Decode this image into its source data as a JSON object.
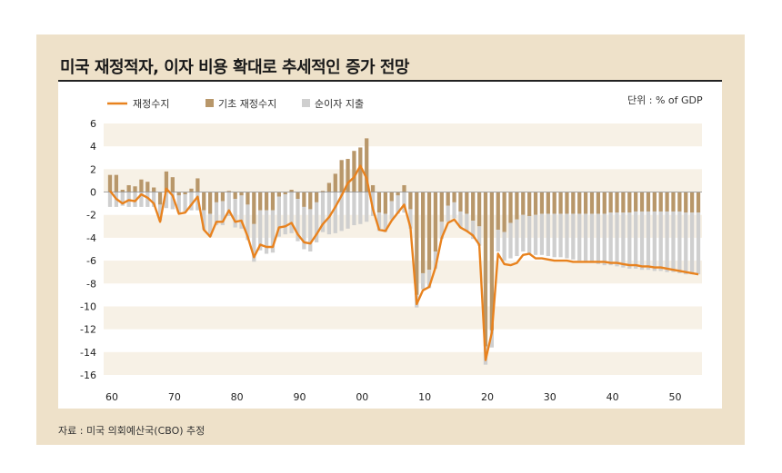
{
  "title": "미국 재정적자, 이자 비용 확대로 추세적인 증가 전망",
  "unit": "단위 : % of GDP",
  "source": "자료 : 미국 의회예산국(CBO) 추정",
  "colors": {
    "panel_bg": "#eee1c9",
    "band": "#f7f1e6",
    "line": "#e8821e",
    "primary": "#b8976a",
    "interest": "#cfcfcf"
  },
  "chart_data": {
    "type": "bar+line",
    "xlabel": "",
    "ylabel": "% of GDP",
    "ylim": [
      -16,
      6
    ],
    "yticks": [
      6,
      4,
      2,
      0,
      -2,
      -4,
      -6,
      -8,
      -10,
      -12,
      -14,
      -16
    ],
    "ytick_labels": [
      "6",
      "4",
      "2",
      "0",
      "-2",
      "-4",
      "-6",
      "-8",
      "-10",
      "-12",
      "-14",
      "-16"
    ],
    "xlim": [
      1960,
      2054
    ],
    "xticks": [
      1960,
      1970,
      1980,
      1990,
      2000,
      2010,
      2020,
      2030,
      2040,
      2050
    ],
    "xtick_labels": [
      "60",
      "70",
      "80",
      "90",
      "00",
      "10",
      "20",
      "30",
      "40",
      "50"
    ],
    "legend": [
      "재정수지",
      "기초 재정수지",
      "순이자 지출"
    ],
    "years": [
      1960,
      1961,
      1962,
      1963,
      1964,
      1965,
      1966,
      1967,
      1968,
      1969,
      1970,
      1971,
      1972,
      1973,
      1974,
      1975,
      1976,
      1977,
      1978,
      1979,
      1980,
      1981,
      1982,
      1983,
      1984,
      1985,
      1986,
      1987,
      1988,
      1989,
      1990,
      1991,
      1992,
      1993,
      1994,
      1995,
      1996,
      1997,
      1998,
      1999,
      2000,
      2001,
      2002,
      2003,
      2004,
      2005,
      2006,
      2007,
      2008,
      2009,
      2010,
      2011,
      2012,
      2013,
      2014,
      2015,
      2016,
      2017,
      2018,
      2019,
      2020,
      2021,
      2022,
      2023,
      2024,
      2025,
      2026,
      2027,
      2028,
      2029,
      2030,
      2031,
      2032,
      2033,
      2034,
      2035,
      2036,
      2037,
      2038,
      2039,
      2040,
      2041,
      2042,
      2043,
      2044,
      2045,
      2046,
      2047,
      2048,
      2049,
      2050,
      2051,
      2052,
      2053,
      2054
    ],
    "series": [
      {
        "name": "재정수지",
        "values": [
          0.1,
          -0.6,
          -1.0,
          -0.7,
          -0.8,
          -0.2,
          -0.5,
          -1.0,
          -2.6,
          0.3,
          -0.3,
          -1.9,
          -1.8,
          -1.1,
          -0.4,
          -3.3,
          -3.9,
          -2.6,
          -2.6,
          -1.6,
          -2.6,
          -2.5,
          -3.9,
          -5.7,
          -4.6,
          -4.8,
          -4.8,
          -3.1,
          -3.0,
          -2.7,
          -3.7,
          -4.4,
          -4.5,
          -3.7,
          -2.8,
          -2.2,
          -1.3,
          -0.3,
          0.8,
          1.3,
          2.3,
          1.2,
          -1.5,
          -3.3,
          -3.4,
          -2.5,
          -1.8,
          -1.1,
          -3.1,
          -9.8,
          -8.6,
          -8.3,
          -6.6,
          -4.0,
          -2.7,
          -2.4,
          -3.1,
          -3.4,
          -3.8,
          -4.6,
          -14.7,
          -12.3,
          -5.4,
          -6.3,
          -6.4,
          -6.2,
          -5.5,
          -5.4,
          -5.8,
          -5.8,
          -5.9,
          -6.0,
          -6.0,
          -6.0,
          -6.1,
          -6.1,
          -6.1,
          -6.1,
          -6.1,
          -6.1,
          -6.2,
          -6.2,
          -6.3,
          -6.4,
          -6.4,
          -6.5,
          -6.5,
          -6.6,
          -6.6,
          -6.7,
          -6.8,
          -6.9,
          -7.0,
          -7.1,
          -7.2
        ]
      },
      {
        "name": "기초 재정수지",
        "values": [
          1.5,
          1.5,
          0.2,
          0.6,
          0.5,
          1.1,
          0.9,
          0.4,
          -1.1,
          1.8,
          1.3,
          -0.3,
          -0.2,
          0.3,
          1.2,
          -1.6,
          -1.9,
          -0.9,
          -0.8,
          0.1,
          -0.6,
          -0.3,
          -1.1,
          -2.8,
          -1.6,
          -1.6,
          -1.6,
          -0.4,
          -0.2,
          0.2,
          -0.6,
          -1.3,
          -1.5,
          -0.9,
          0.1,
          0.8,
          1.6,
          2.8,
          2.9,
          3.6,
          3.9,
          4.7,
          0.6,
          -1.8,
          -1.9,
          -0.8,
          -0.3,
          0.6,
          -1.5,
          -9.0,
          -7.1,
          -6.8,
          -5.2,
          -2.6,
          -1.2,
          -0.9,
          -1.7,
          -1.9,
          -2.5,
          -3.0,
          -13.5,
          -12.1,
          -3.3,
          -3.5,
          -2.7,
          -2.4,
          -2.0,
          -2.1,
          -2.0,
          -1.9,
          -1.9,
          -1.9,
          -1.9,
          -1.9,
          -1.9,
          -1.9,
          -1.9,
          -1.9,
          -1.9,
          -1.9,
          -1.8,
          -1.8,
          -1.8,
          -1.8,
          -1.7,
          -1.7,
          -1.7,
          -1.7,
          -1.7,
          -1.7,
          -1.7,
          -1.7,
          -1.8,
          -1.8,
          -1.8
        ]
      },
      {
        "name": "순이자 지출",
        "values": [
          -1.3,
          -1.3,
          -1.2,
          -1.3,
          -1.3,
          -1.3,
          -1.3,
          -1.3,
          -1.4,
          -1.4,
          -1.5,
          -1.5,
          -1.5,
          -1.6,
          -1.6,
          -1.7,
          -2.0,
          -2.0,
          -2.1,
          -2.1,
          -2.5,
          -2.9,
          -3.1,
          -3.3,
          -3.5,
          -3.8,
          -3.7,
          -3.5,
          -3.5,
          -3.6,
          -3.7,
          -3.7,
          -3.7,
          -3.5,
          -3.5,
          -3.7,
          -3.6,
          -3.4,
          -3.2,
          -2.9,
          -2.8,
          -2.6,
          -2.1,
          -1.6,
          -1.6,
          -1.6,
          -1.6,
          -1.8,
          -1.7,
          -1.1,
          -1.4,
          -1.6,
          -1.5,
          -1.5,
          -1.4,
          -1.4,
          -1.4,
          -1.5,
          -1.6,
          -1.7,
          -1.6,
          -1.5,
          -1.9,
          -2.5,
          -3.1,
          -3.2,
          -3.2,
          -3.3,
          -3.5,
          -3.6,
          -3.7,
          -3.8,
          -3.8,
          -3.9,
          -4.0,
          -4.1,
          -4.2,
          -4.3,
          -4.4,
          -4.5,
          -4.6,
          -4.7,
          -4.8,
          -4.9,
          -5.0,
          -5.1,
          -5.1,
          -5.2,
          -5.2,
          -5.3,
          -5.3,
          -5.4,
          -5.4,
          -5.4,
          -5.4
        ]
      }
    ]
  }
}
